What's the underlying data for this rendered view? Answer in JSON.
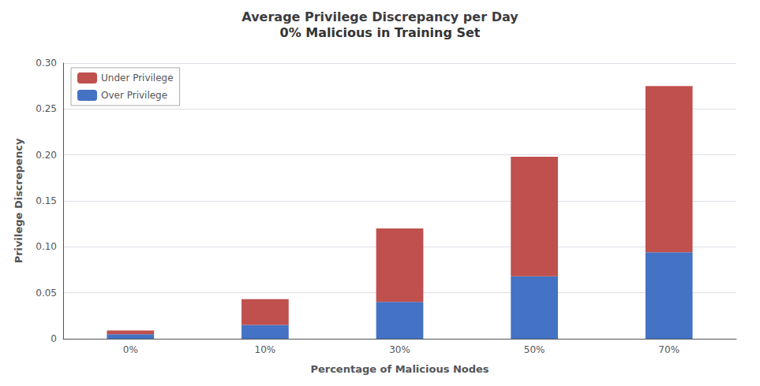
{
  "chart_data": {
    "type": "bar",
    "title": "Average Privilege Discrepancy per Day",
    "subtitle": "0% Malicious in Training Set",
    "categories": [
      "0%",
      "10%",
      "30%",
      "50%",
      "70%"
    ],
    "series": [
      {
        "name": "Over Privilege",
        "color": "#4472C4",
        "values": [
          0.005,
          0.015,
          0.04,
          0.068,
          0.094
        ]
      },
      {
        "name": "Under Privilege",
        "color": "#C0504D",
        "values": [
          0.004,
          0.028,
          0.08,
          0.13,
          0.181
        ]
      }
    ],
    "stacked": true,
    "xlabel": "Percentage of Malicious Nodes",
    "ylabel": "Privilege Discrepency",
    "ylim": [
      0,
      0.3
    ],
    "yticks": [
      0,
      0.05,
      {
        "value": 0.1,
        "label": "0.10"
      },
      0.15,
      {
        "value": 0.2,
        "label": "0.20"
      },
      0.25,
      {
        "value": 0.3,
        "label": "0.30"
      }
    ],
    "grid": true,
    "legend": "upper left"
  }
}
